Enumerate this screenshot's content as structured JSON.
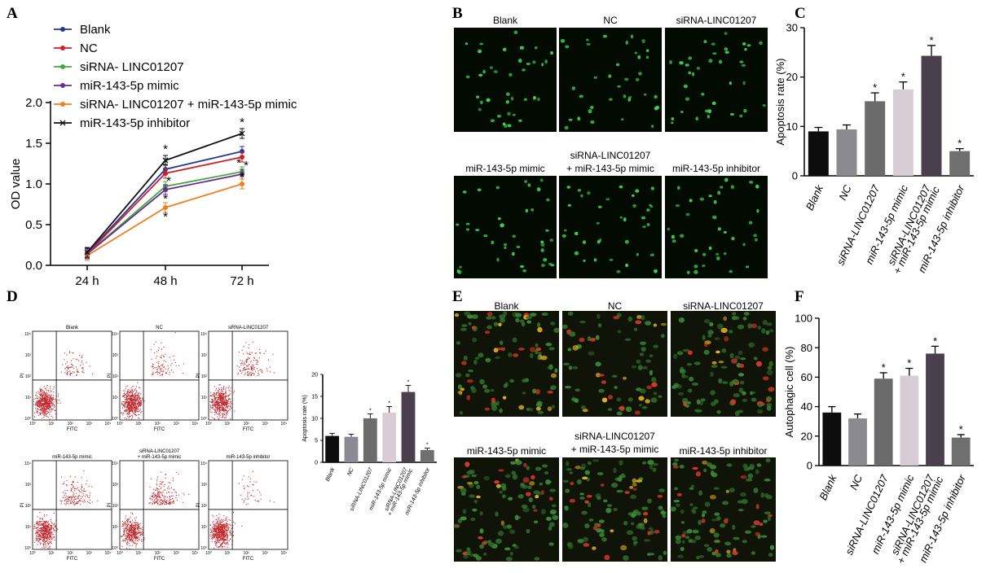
{
  "panel_letters": [
    "A",
    "B",
    "C",
    "D",
    "E",
    "F"
  ],
  "colors": {
    "blank": "#1f3b9a",
    "nc": "#d21f26",
    "sirna": "#45a83a",
    "mimic": "#6a2c91",
    "combo": "#f07f1e",
    "inhibitor": "#111111",
    "fluor_bg": "#020a02",
    "fluor_cell": "#3fd14a",
    "flow_dot": "#c0262b",
    "merge_bg": "#101408"
  },
  "chart_data": [
    {
      "id": "A",
      "type": "line",
      "title": "",
      "xlabel": "",
      "ylabel": "OD value",
      "categories": [
        "24 h",
        "48 h",
        "72 h"
      ],
      "yticks": [
        "0.0",
        "0.5",
        "1.0",
        "1.5",
        "2.0"
      ],
      "ylim": [
        0,
        2.0
      ],
      "series": [
        {
          "name": "Blank",
          "color_key": "blank",
          "values": [
            0.15,
            1.18,
            1.4
          ],
          "stars": [
            false,
            false,
            false
          ]
        },
        {
          "name": "NC",
          "color_key": "nc",
          "values": [
            0.14,
            1.13,
            1.33
          ],
          "stars": [
            false,
            false,
            false
          ]
        },
        {
          "name": "siRNA- LINC01207",
          "color_key": "sirna",
          "values": [
            0.14,
            0.97,
            1.15
          ],
          "stars": [
            false,
            true,
            true
          ]
        },
        {
          "name": "miR-143-5p mimic",
          "color_key": "mimic",
          "values": [
            0.14,
            0.93,
            1.12
          ],
          "stars": [
            false,
            true,
            true
          ]
        },
        {
          "name": "siRNA- LINC01207 + miR-143-5p mimic",
          "color_key": "combo",
          "values": [
            0.12,
            0.71,
            1.0
          ],
          "stars": [
            false,
            true,
            true
          ]
        },
        {
          "name": "miR-143-5p inhibitor",
          "color_key": "inhibitor",
          "values": [
            0.16,
            1.29,
            1.62
          ],
          "stars": [
            false,
            true,
            true
          ]
        }
      ],
      "star_symbol": "*"
    },
    {
      "id": "C",
      "type": "bar",
      "ylabel": "Apoptosis rate (%)",
      "categories": [
        "Blank",
        "NC",
        "siRNA-LINC01207",
        "miR-143-5p mimic",
        "siRNA-LINC01207 + miR-143-5p mimic",
        "miR-143-5p inhibitor"
      ],
      "values": [
        9.0,
        9.4,
        15.1,
        17.5,
        24.3,
        5.0
      ],
      "errors": [
        0.8,
        0.9,
        1.7,
        1.5,
        2.1,
        0.5
      ],
      "stars": [
        false,
        false,
        true,
        true,
        true,
        true
      ],
      "bar_colors": [
        "#0d0d0d",
        "#8a8a90",
        "#6b6b6b",
        "#d8cdd4",
        "#4a3f4c",
        "#6f6f6f"
      ],
      "yticks": [
        "0",
        "10",
        "20",
        "30"
      ],
      "ylim": [
        0,
        30
      ]
    },
    {
      "id": "D-bar",
      "type": "bar",
      "ylabel": "Apoptosis rate (%)",
      "categories": [
        "Blank",
        "NC",
        "siRNA-LINC01207",
        "miR-143-5p mimic",
        "siRNA-LINC01207 + miR-143-5p mimic",
        "miR-143-5p inhibitor"
      ],
      "values": [
        6.0,
        5.8,
        10.0,
        11.3,
        16.0,
        2.8
      ],
      "errors": [
        0.6,
        0.6,
        1.0,
        1.4,
        1.5,
        0.4
      ],
      "stars": [
        false,
        false,
        true,
        true,
        true,
        true
      ],
      "bar_colors": [
        "#0d0d0d",
        "#8a8a90",
        "#6b6b6b",
        "#d8cdd4",
        "#4a3f4c",
        "#6f6f6f"
      ],
      "yticks": [
        "0",
        "5",
        "10",
        "15",
        "20"
      ],
      "ylim": [
        0,
        20
      ]
    },
    {
      "id": "F",
      "type": "bar",
      "ylabel": "Autophagic cell (%)",
      "categories": [
        "Blank",
        "NC",
        "siRNA-LINC01207",
        "miR-143-5p mimic",
        "siRNA-LINC01207 + miR-143-5p mimic",
        "miR-143-5p inhibitor"
      ],
      "values": [
        36,
        32,
        59,
        61,
        76,
        19
      ],
      "errors": [
        4,
        3,
        4,
        5,
        5,
        2
      ],
      "stars": [
        false,
        false,
        true,
        true,
        true,
        true
      ],
      "bar_colors": [
        "#0d0d0d",
        "#8a8a90",
        "#6b6b6b",
        "#d8cdd4",
        "#4a3f4c",
        "#6f6f6f"
      ],
      "yticks": [
        "0",
        "20",
        "40",
        "60",
        "80",
        "100"
      ],
      "ylim": [
        0,
        100
      ]
    }
  ],
  "panel_B": {
    "row1_titles": [
      "Blank",
      "NC",
      "siRNA-LINC01207"
    ],
    "row2_titles": [
      "miR-143-5p mimic",
      "siRNA-LINC01207\n+ miR-143-5p mimic",
      "miR-143-5p inhibitor"
    ],
    "row2_title_line1": "siRNA-LINC01207",
    "row2_title_line2": "+ miR-143-5p mimic"
  },
  "panel_D": {
    "plot_titles": [
      "Blank",
      "NC",
      "siRNA-LINC01207",
      "miR-143-5p mimic",
      "siRNA-LINC01207\n+ miR-143-5p mimic",
      "miR-143-5p inhibitor"
    ],
    "combo_title_line1": "siRNA-LINC01207",
    "combo_title_line2": "+ miR-143-5p mimic",
    "xlabel": "FITC",
    "ylabel": "PI",
    "ticks": [
      "10⁰",
      "10¹",
      "10²",
      "10³",
      "10⁴"
    ]
  },
  "panel_E": {
    "row1_titles": [
      "Blank",
      "NC",
      "siRNA-LINC01207"
    ],
    "row2_titles": [
      "miR-143-5p mimic",
      "siRNA-LINC01207\n+ miR-143-5p mimic",
      "miR-143-5p inhibitor"
    ],
    "row2_title_line1": "siRNA-LINC01207",
    "row2_title_line2": "+ miR-143-5p mimic"
  }
}
